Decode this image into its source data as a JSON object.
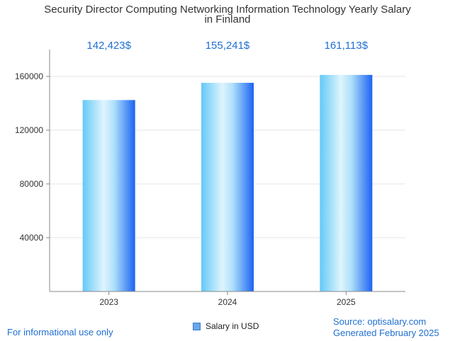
{
  "chart_data": {
    "type": "bar",
    "title_lines": [
      "Security Director Computing Networking Information Technology Yearly Salary",
      "in Finland"
    ],
    "categories": [
      "2023",
      "2024",
      "2025"
    ],
    "values": [
      142423,
      155241,
      161113
    ],
    "value_labels": [
      "142,423$",
      "155,241$",
      "161,113$"
    ],
    "series": [
      {
        "name": "Salary in USD",
        "values": [
          142423,
          155241,
          161113
        ]
      }
    ],
    "ylim": [
      0,
      180000
    ],
    "yticks": [
      40000,
      80000,
      120000,
      160000
    ],
    "grid": true,
    "legend_position": "bottom"
  },
  "footer": {
    "disclaimer": "For informational use only",
    "source": "Source: optisalary.com",
    "generated": "Generated February 2025"
  },
  "colors": {
    "bar_light": "#c6ecfb",
    "bar_mid": "#5bc6f6",
    "bar_dark": "#1c63f2",
    "label_blue": "#1f6fd1"
  }
}
